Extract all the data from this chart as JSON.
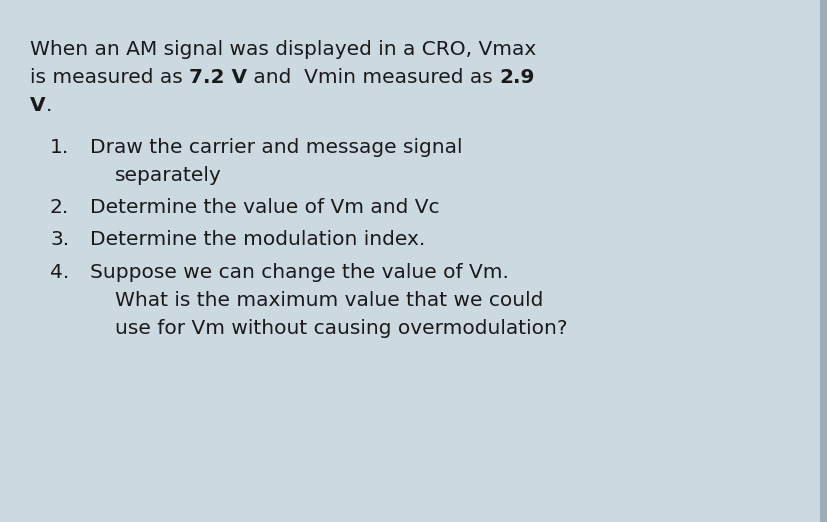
{
  "background_color": "#cdd9e0",
  "card_color": "#d6e4ec",
  "text_color": "#1a1a1a",
  "font_size_body": 14.5,
  "intro_line1": "When an AM signal was displayed in a CRO, Vmax",
  "intro_line2_normal": "is measured as ",
  "intro_line2_bold": "7.2 V",
  "intro_line2_normal2": " and  Vmin measured as ",
  "intro_line2_bold2": "2.9",
  "intro_line3_bold": "V",
  "intro_line3_normal": ".",
  "items": [
    {
      "number": "1.",
      "line1": "Draw the carrier and message signal",
      "line2": "separately",
      "line3": null
    },
    {
      "number": "2.",
      "line1": "Determine the value of Vm and Vc",
      "line2": null,
      "line3": null
    },
    {
      "number": "3.",
      "line1": "Determine the modulation index.",
      "line2": null,
      "line3": null
    },
    {
      "number": "4.",
      "line1": "Suppose we can change the value of Vm.",
      "line2": "What is the maximum value that we could",
      "line3": "use for Vm without causing overmodulation?"
    }
  ],
  "right_bar_color": "#9aadb8",
  "right_bar_width": 8
}
